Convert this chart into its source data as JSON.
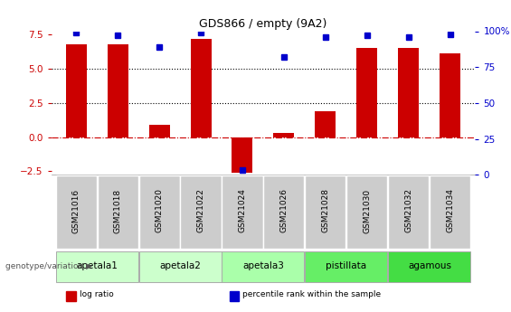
{
  "title": "GDS866 / empty (9A2)",
  "samples": [
    "GSM21016",
    "GSM21018",
    "GSM21020",
    "GSM21022",
    "GSM21024",
    "GSM21026",
    "GSM21028",
    "GSM21030",
    "GSM21032",
    "GSM21034"
  ],
  "log_ratio": [
    6.8,
    6.8,
    0.9,
    7.2,
    -2.6,
    0.3,
    1.9,
    6.5,
    6.5,
    6.1
  ],
  "percentile_rank": [
    99,
    97,
    89,
    99,
    3,
    82,
    96,
    97,
    96,
    98
  ],
  "groups": [
    {
      "name": "apetala1",
      "color": "#ccffcc",
      "start": 0,
      "end": 1
    },
    {
      "name": "apetala2",
      "color": "#ccffcc",
      "start": 2,
      "end": 3
    },
    {
      "name": "apetala3",
      "color": "#aaffaa",
      "start": 4,
      "end": 5
    },
    {
      "name": "pistillata",
      "color": "#66ee66",
      "start": 6,
      "end": 7
    },
    {
      "name": "agamous",
      "color": "#44dd44",
      "start": 8,
      "end": 9
    }
  ],
  "bar_color": "#cc0000",
  "dot_color": "#0000cc",
  "ylim_left": [
    -2.75,
    7.75
  ],
  "ylim_right": [
    0,
    100
  ],
  "yticks_left": [
    -2.5,
    0,
    2.5,
    5.0,
    7.5
  ],
  "yticks_right": [
    0,
    25,
    50,
    75,
    100
  ],
  "hlines": [
    0,
    2.5,
    5.0
  ],
  "hline_styles": [
    "dashdot",
    "dotted",
    "dotted"
  ],
  "hline_colors": [
    "#cc0000",
    "#000000",
    "#000000"
  ],
  "background_color": "#ffffff",
  "sample_box_color": "#cccccc",
  "legend_items": [
    {
      "label": "log ratio",
      "color": "#cc0000"
    },
    {
      "label": "percentile rank within the sample",
      "color": "#0000cc"
    }
  ],
  "genotype_label": "genotype/variation"
}
